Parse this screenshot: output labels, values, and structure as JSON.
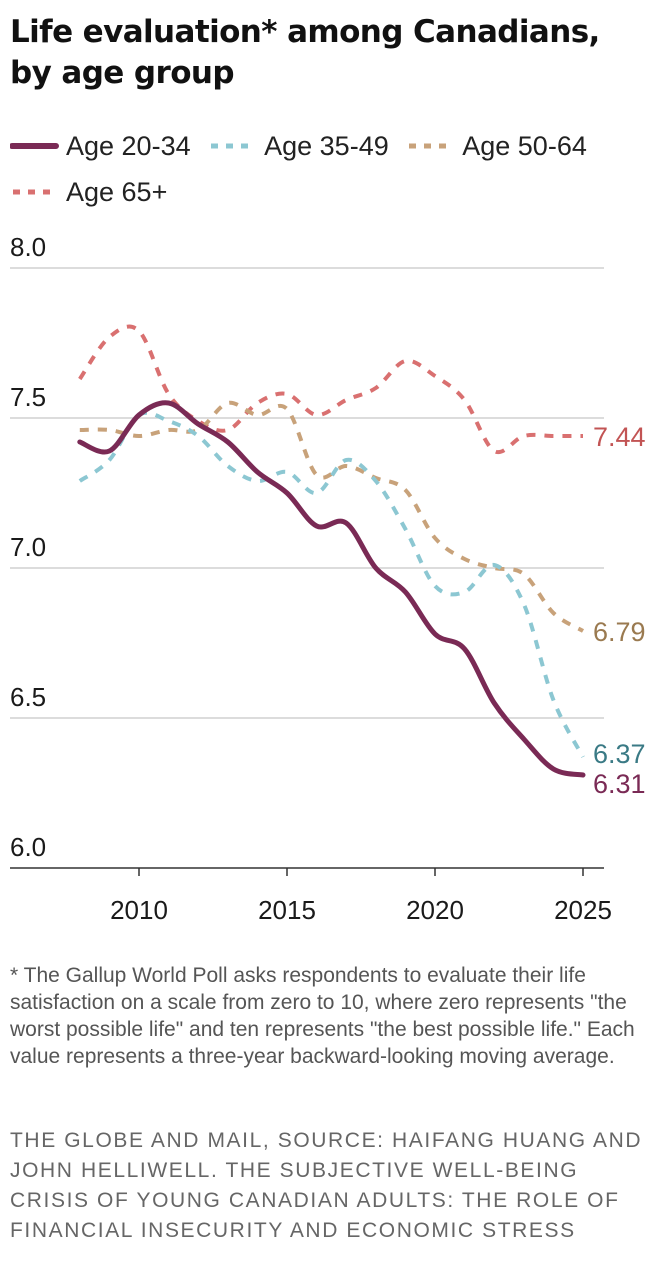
{
  "chart_data": {
    "type": "line",
    "title": "Life evaluation* among Canadians, by age group",
    "xlabel": "",
    "ylabel": "",
    "xlim": [
      2008,
      2025
    ],
    "ylim": [
      6.0,
      8.0
    ],
    "xticks": [
      2010,
      2015,
      2020,
      2025
    ],
    "x_tick_labels": [
      "2010",
      "2015",
      "2020",
      "2025"
    ],
    "yticks": [
      6.0,
      6.5,
      7.0,
      7.5,
      8.0
    ],
    "y_tick_labels": [
      "6.0",
      "6.5",
      "7.0",
      "7.5",
      "8.0"
    ],
    "grid": true,
    "legend_position": "top-left",
    "x": [
      2008,
      2009,
      2010,
      2011,
      2012,
      2013,
      2014,
      2015,
      2016,
      2017,
      2018,
      2019,
      2020,
      2021,
      2022,
      2023,
      2024,
      2025
    ],
    "series": [
      {
        "name": "Age 20-34",
        "color": "#7a2a55",
        "dash": "solid",
        "end_label": "6.31",
        "label_color": "#7a2a55",
        "values": [
          7.42,
          7.39,
          7.51,
          7.55,
          7.48,
          7.42,
          7.32,
          7.25,
          7.14,
          7.15,
          7.0,
          6.92,
          6.78,
          6.73,
          6.55,
          6.43,
          6.33,
          6.31
        ]
      },
      {
        "name": "Age 35-49",
        "color": "#8cc7d2",
        "dash": "dashed",
        "end_label": "6.37",
        "label_color": "#3a7a85",
        "values": [
          7.29,
          7.36,
          7.51,
          7.49,
          7.44,
          7.34,
          7.29,
          7.32,
          7.25,
          7.36,
          7.29,
          7.13,
          6.94,
          6.92,
          7.01,
          6.88,
          6.56,
          6.37
        ]
      },
      {
        "name": "Age 50-64",
        "color": "#c8a27a",
        "dash": "dashed",
        "end_label": "6.79",
        "label_color": "#9a7a50",
        "values": [
          7.46,
          7.46,
          7.44,
          7.46,
          7.46,
          7.55,
          7.51,
          7.53,
          7.31,
          7.34,
          7.3,
          7.26,
          7.1,
          7.03,
          7.0,
          6.98,
          6.85,
          6.79
        ]
      },
      {
        "name": "Age 65+",
        "color": "#d97070",
        "dash": "dashed",
        "end_label": "7.44",
        "label_color": "#c25454",
        "values": [
          7.63,
          7.77,
          7.79,
          7.58,
          7.49,
          7.46,
          7.55,
          7.58,
          7.51,
          7.56,
          7.6,
          7.69,
          7.64,
          7.56,
          7.39,
          7.44,
          7.44,
          7.44
        ]
      }
    ]
  },
  "footnote": "* The Gallup World Poll asks respondents to evaluate their life satisfaction on a scale from zero to 10, where zero represents \"the worst possible life\" and ten represents \"the best possible life.\" Each value represents a three-year backward-looking moving average.",
  "source": "THE GLOBE AND MAIL, SOURCE: HAIFANG HUANG AND JOHN HELLIWELL. THE SUBJECTIVE WELL-BEING CRISIS OF YOUNG CANADIAN ADULTS: THE ROLE OF FINANCIAL INSECURITY AND ECONOMIC STRESS"
}
